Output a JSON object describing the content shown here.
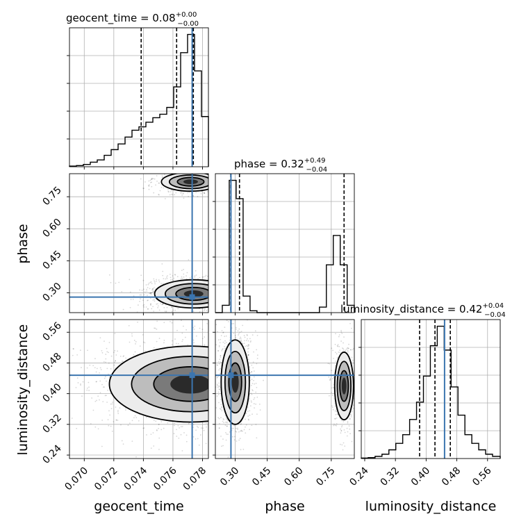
{
  "chart_data": {
    "type": "corner",
    "parameters": [
      "geocent_time",
      "phase",
      "luminosity_distance"
    ],
    "titles": [
      {
        "param": "geocent_time",
        "text": "geocent_time = 0.08",
        "plus": "+0.00",
        "minus": "−0.00"
      },
      {
        "param": "phase",
        "text": "phase = 0.32",
        "plus": "+0.49",
        "minus": "−0.04"
      },
      {
        "param": "luminosity_distance",
        "text": "luminosity_distance = 0.42",
        "plus": "+0.04",
        "minus": "−0.04"
      }
    ],
    "axis_labels": {
      "geocent_time": "geocent_time",
      "phase": "phase",
      "luminosity_distance": "luminosity_distance"
    },
    "ranges": {
      "geocent_time": [
        0.069,
        0.0784
      ],
      "phase": [
        0.207,
        0.858
      ],
      "luminosity_distance": [
        0.231,
        0.593
      ]
    },
    "ticks": {
      "geocent_time": [
        "0.070",
        "0.072",
        "0.074",
        "0.076",
        "0.078"
      ],
      "phase": [
        "0.30",
        "0.45",
        "0.60",
        "0.75"
      ],
      "luminosity_distance": [
        "0.24",
        "0.32",
        "0.40",
        "0.48",
        "0.56"
      ]
    },
    "truths": {
      "geocent_time": 0.0773,
      "phase": 0.28,
      "luminosity_distance": 0.448
    },
    "quantiles": {
      "geocent_time": [
        0.07385,
        0.07625,
        0.07738
      ],
      "phase": [
        0.279,
        0.32,
        0.81
      ],
      "luminosity_distance": [
        0.383,
        0.423,
        0.463
      ]
    },
    "histograms": {
      "geocent_time": {
        "edges": [
          0.069,
          0.06947,
          0.06994,
          0.07041,
          0.07088,
          0.07135,
          0.07182,
          0.07229,
          0.07276,
          0.07323,
          0.0737,
          0.07417,
          0.07464,
          0.07511,
          0.07558,
          0.07605,
          0.07652,
          0.07699,
          0.07746,
          0.07793,
          0.0784
        ],
        "values": [
          0.3,
          0.5,
          1.0,
          2.0,
          3.0,
          5.0,
          7.5,
          10.0,
          13.0,
          16.0,
          17.5,
          19.5,
          21.5,
          23.0,
          26.0,
          35.0,
          50.0,
          58.0,
          42.0,
          22.0
        ]
      },
      "phase": {
        "edges": [
          0.207,
          0.2395,
          0.272,
          0.3045,
          0.337,
          0.3695,
          0.402,
          0.4345,
          0.467,
          0.4995,
          0.532,
          0.5645,
          0.597,
          0.6295,
          0.662,
          0.6945,
          0.727,
          0.7595,
          0.792,
          0.8245,
          0.858
        ],
        "values": [
          0,
          4,
          72,
          62,
          9,
          1,
          0,
          0,
          0,
          0,
          0,
          0,
          0,
          0,
          0,
          3,
          26,
          42,
          26,
          4
        ]
      },
      "luminosity_distance": {
        "edges": [
          0.231,
          0.249,
          0.267,
          0.285,
          0.303,
          0.321,
          0.339,
          0.357,
          0.375,
          0.393,
          0.411,
          0.429,
          0.447,
          0.465,
          0.483,
          0.501,
          0.519,
          0.537,
          0.555,
          0.573,
          0.593
        ],
        "values": [
          0.2,
          0.4,
          1.0,
          2.0,
          4.0,
          7.0,
          11.0,
          18.0,
          26.0,
          38.0,
          52.0,
          61.0,
          50.0,
          33.0,
          20.0,
          11.0,
          7.0,
          4.0,
          2.0,
          1.0
        ]
      }
    },
    "joint_modes": {
      "phase_vs_geocent_time": [
        {
          "x": 0.0774,
          "y": 0.295,
          "sx": 0.0012,
          "sy": 0.03,
          "w": 0.6
        },
        {
          "x": 0.0772,
          "y": 0.82,
          "sx": 0.0009,
          "sy": 0.02,
          "w": 0.35
        }
      ],
      "luminosity_distance_vs_geocent_time": [
        {
          "x": 0.0772,
          "y": 0.425,
          "sx": 0.0025,
          "sy": 0.045,
          "w": 1.0
        }
      ],
      "luminosity_distance_vs_phase": [
        {
          "x": 0.3,
          "y": 0.43,
          "sx": 0.03,
          "sy": 0.05,
          "w": 0.65
        },
        {
          "x": 0.81,
          "y": 0.42,
          "sx": 0.02,
          "sy": 0.04,
          "w": 0.35
        }
      ]
    },
    "colors": {
      "truth": "#3b75af",
      "contour": "#000000",
      "grid": "#b0b0b0"
    }
  }
}
